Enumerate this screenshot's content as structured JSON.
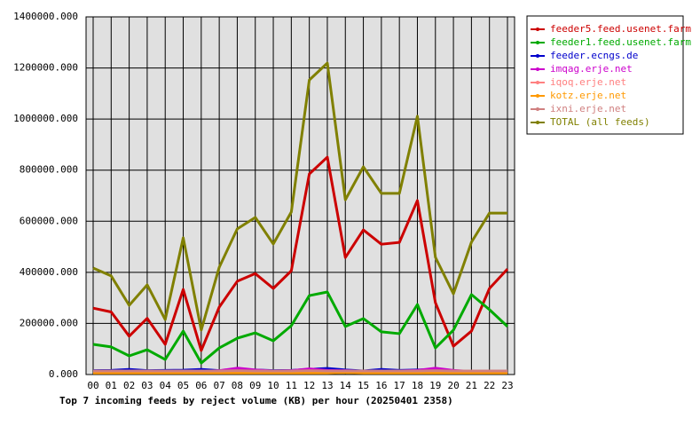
{
  "chart_data": {
    "type": "line",
    "title": "Top 7 incoming feeds by reject volume (KB) per hour (20250401 2358)",
    "categories": [
      "00",
      "01",
      "02",
      "03",
      "04",
      "05",
      "06",
      "07",
      "08",
      "09",
      "10",
      "11",
      "12",
      "13",
      "14",
      "15",
      "16",
      "17",
      "18",
      "19",
      "20",
      "21",
      "22",
      "23"
    ],
    "series": [
      {
        "name": "feeder5.feed.usenet.farm",
        "color": "#cc0000",
        "values": [
          260000,
          245000,
          150000,
          220000,
          118000,
          333000,
          94000,
          264000,
          365000,
          395000,
          337000,
          406000,
          785000,
          851000,
          458000,
          566000,
          510000,
          517000,
          681000,
          281000,
          111000,
          170000,
          337000,
          413000
        ]
      },
      {
        "name": "feeder1.feed.usenet.farm",
        "color": "#00aa00",
        "values": [
          118000,
          108000,
          73000,
          97000,
          59000,
          170000,
          45000,
          104000,
          142000,
          163000,
          132000,
          191000,
          309000,
          323000,
          188000,
          219000,
          167000,
          160000,
          274000,
          104000,
          174000,
          313000,
          254000,
          188000
        ]
      },
      {
        "name": "feeder.ecngs.de",
        "color": "#0000cc",
        "values": [
          15000,
          16000,
          20000,
          15000,
          16000,
          17000,
          20000,
          15000,
          16000,
          18000,
          15000,
          16000,
          20000,
          24000,
          18000,
          14000,
          20000,
          16000,
          18000,
          20000,
          12000,
          12000,
          14000,
          12000
        ]
      },
      {
        "name": "imqag.erje.net",
        "color": "#cc00cc",
        "values": [
          14000,
          14000,
          14000,
          14000,
          14000,
          14000,
          12000,
          15000,
          25000,
          18000,
          14000,
          15000,
          22000,
          16000,
          15000,
          13000,
          14000,
          14000,
          16000,
          25000,
          16000,
          12000,
          13000,
          12000
        ]
      },
      {
        "name": "iqoq.erje.net",
        "color": "#ff8080",
        "values": [
          10000,
          10000,
          10000,
          10000,
          10000,
          10000,
          10000,
          10000,
          10000,
          10000,
          10000,
          10000,
          10000,
          10000,
          10000,
          10000,
          10000,
          10000,
          10000,
          10000,
          10000,
          10000,
          10000,
          10000
        ]
      },
      {
        "name": "kotz.erje.net",
        "color": "#ff9900",
        "values": [
          6000,
          6000,
          6000,
          6000,
          6000,
          6000,
          6000,
          6000,
          6000,
          6000,
          6000,
          6000,
          6000,
          6000,
          8000,
          6000,
          6000,
          6000,
          6000,
          6000,
          6000,
          6000,
          6000,
          6000
        ]
      },
      {
        "name": "ixni.erje.net",
        "color": "#d08080",
        "values": [
          14000,
          14000,
          14000,
          14000,
          14000,
          14000,
          14000,
          14000,
          15000,
          14000,
          14000,
          14000,
          15000,
          14000,
          14000,
          14000,
          14000,
          14000,
          14000,
          15000,
          14000,
          14000,
          14000,
          14000
        ]
      },
      {
        "name": "TOTAL (all feeds)",
        "color": "#808000",
        "values": [
          417000,
          386000,
          271000,
          351000,
          215000,
          535000,
          174000,
          420000,
          570000,
          615000,
          511000,
          636000,
          1153000,
          1219000,
          684000,
          813000,
          709000,
          709000,
          1011000,
          459000,
          316000,
          518000,
          632000,
          632000
        ]
      }
    ],
    "ylim": [
      0,
      1400000
    ],
    "yticks": [
      {
        "value": 0,
        "label": "0.000"
      },
      {
        "value": 200000,
        "label": "200000.000"
      },
      {
        "value": 400000,
        "label": "400000.000"
      },
      {
        "value": 600000,
        "label": "600000.000"
      },
      {
        "value": 800000,
        "label": "800000.000"
      },
      {
        "value": 1000000,
        "label": "1000000.000"
      },
      {
        "value": 1200000,
        "label": "1200000.000"
      },
      {
        "value": 1400000,
        "label": "1400000.000"
      }
    ],
    "grid": true,
    "legend": "right"
  }
}
